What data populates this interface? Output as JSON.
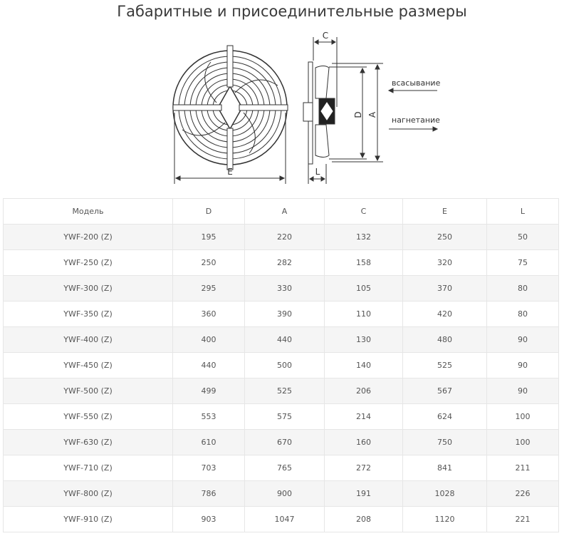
{
  "title": "Габаритные и присоединительные размеры",
  "diagram": {
    "labels": {
      "C": "C",
      "D": "D",
      "A": "A",
      "E": "E",
      "L": "L"
    },
    "suction": "всасывание",
    "discharge": "нагнетание"
  },
  "table": {
    "headers": [
      "Модель",
      "D",
      "A",
      "C",
      "E",
      "L"
    ],
    "rows": [
      [
        "YWF-200 (Z)",
        "195",
        "220",
        "132",
        "250",
        "50"
      ],
      [
        "YWF-250 (Z)",
        "250",
        "282",
        "158",
        "320",
        "75"
      ],
      [
        "YWF-300 (Z)",
        "295",
        "330",
        "105",
        "370",
        "80"
      ],
      [
        "YWF-350 (Z)",
        "360",
        "390",
        "110",
        "420",
        "80"
      ],
      [
        "YWF-400 (Z)",
        "400",
        "440",
        "130",
        "480",
        "90"
      ],
      [
        "YWF-450 (Z)",
        "440",
        "500",
        "140",
        "525",
        "90"
      ],
      [
        "YWF-500 (Z)",
        "499",
        "525",
        "206",
        "567",
        "90"
      ],
      [
        "YWF-550 (Z)",
        "553",
        "575",
        "214",
        "624",
        "100"
      ],
      [
        "YWF-630 (Z)",
        "610",
        "670",
        "160",
        "750",
        "100"
      ],
      [
        "YWF-710 (Z)",
        "703",
        "765",
        "272",
        "841",
        "211"
      ],
      [
        "YWF-800 (Z)",
        "786",
        "900",
        "191",
        "1028",
        "226"
      ],
      [
        "YWF-910 (Z)",
        "903",
        "1047",
        "208",
        "1120",
        "221"
      ]
    ]
  }
}
